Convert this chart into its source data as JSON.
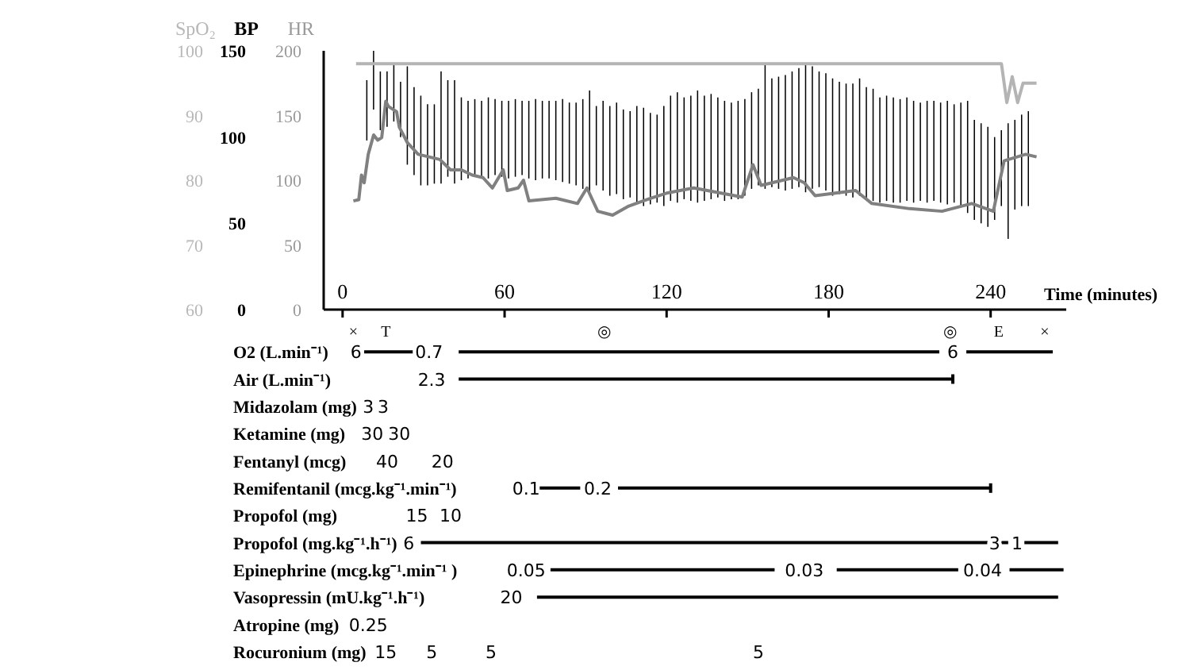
{
  "chart_data": [
    {
      "type": "bar",
      "ylabel": "BP",
      "y2label": "HR",
      "y3label": "SpO₂",
      "xlabel": "Time (minutes)",
      "xlim": [
        -7,
        268
      ],
      "xticks": [
        0,
        60,
        120,
        180,
        240
      ],
      "ylim": [
        0,
        150
      ],
      "yticks": [
        0,
        50,
        100,
        150
      ],
      "y2lim": [
        0,
        200
      ],
      "y2ticks": [
        0,
        50,
        100,
        150,
        200
      ],
      "y3lim": [
        60,
        100
      ],
      "y3ticks": [
        60,
        70,
        80,
        90,
        100
      ],
      "marker": "none",
      "series": [
        {
          "type": "bar",
          "color": "#000000",
          "x": [
            9,
            11.5,
            14,
            16.5,
            19,
            21.5,
            24,
            26.5,
            29,
            31.5,
            34,
            36.5,
            39,
            41.5,
            44,
            46.5,
            49,
            51.5,
            54,
            56.5,
            59,
            61.5,
            64,
            66.5,
            69,
            71.5,
            74,
            76.5,
            79,
            81.5,
            84,
            86.5,
            89,
            91.5,
            94,
            96.5,
            99,
            101.5,
            104,
            106.5,
            109,
            111.5,
            114,
            116.5,
            119,
            121.5,
            124,
            126.5,
            129,
            131.5,
            134,
            136.5,
            139,
            141.5,
            144,
            146.5,
            149,
            151.5,
            154,
            156.5,
            159,
            161.5,
            164,
            166.5,
            169,
            171.5,
            174,
            176.5,
            179,
            181.5,
            184,
            186.5,
            189,
            191.5,
            194,
            196.5,
            199,
            201.5,
            204,
            206.5,
            209,
            211.5,
            214,
            216.5,
            219,
            221.5,
            224,
            226.5,
            229,
            231.5,
            234,
            236.5,
            239,
            241.5,
            244,
            246.5,
            249,
            251.5,
            254
          ],
          "base": [
            98,
            116,
            104,
            106,
            109,
            100,
            84,
            78,
            72,
            72,
            73,
            73,
            77,
            73,
            75,
            76,
            78,
            77,
            76,
            78,
            77,
            76,
            77,
            78,
            76,
            75,
            76,
            76,
            75,
            74,
            73,
            72,
            70,
            68,
            72,
            69,
            66,
            67,
            64,
            65,
            62,
            60,
            61,
            62,
            60,
            63,
            62,
            64,
            63,
            62,
            63,
            64,
            65,
            63,
            64,
            64,
            66,
            70,
            72,
            70,
            71,
            70,
            69,
            70,
            71,
            68,
            70,
            71,
            69,
            66,
            67,
            66,
            65,
            66,
            64,
            63,
            62,
            63,
            62,
            62,
            63,
            62,
            63,
            62,
            63,
            62,
            61,
            62,
            60,
            56,
            52,
            50,
            48,
            52,
            60,
            41,
            58,
            60,
            60
          ],
          "values": [
            35,
            34,
            34,
            32,
            34,
            32,
            57,
            51,
            52,
            47,
            46,
            65,
            56,
            60,
            48,
            45,
            44,
            44,
            47,
            44,
            44,
            45,
            45,
            43,
            45,
            47,
            45,
            45,
            46,
            48,
            47,
            48,
            52,
            59,
            46,
            52,
            52,
            53,
            52,
            50,
            56,
            57,
            53,
            51,
            58,
            61,
            64,
            59,
            61,
            65,
            61,
            61,
            58,
            58,
            56,
            57,
            56,
            56,
            56,
            73,
            63,
            65,
            67,
            68,
            69,
            74,
            71,
            67,
            68,
            68,
            65,
            65,
            66,
            68,
            65,
            65,
            61,
            61,
            61,
            60,
            60,
            59,
            57,
            59,
            58,
            58,
            60,
            57,
            60,
            65,
            58,
            58,
            58,
            48,
            44,
            67,
            52,
            53,
            55
          ]
        },
        {
          "type": "line",
          "axis": "y2",
          "color": "#808080",
          "x": [
            4,
            6,
            7,
            8,
            9.5,
            11.5,
            13,
            14.5,
            16,
            17,
            20,
            21,
            24,
            28,
            32,
            36,
            40,
            44,
            48,
            52,
            55.5,
            59.5,
            61,
            65,
            67,
            69,
            79,
            87,
            90.5,
            94.5,
            100,
            106,
            114,
            120,
            130,
            148,
            152,
            155,
            167,
            171,
            175,
            190,
            196,
            210,
            222,
            233,
            241,
            245,
            253,
            257
          ],
          "values": [
            84,
            85,
            104,
            98,
            120,
            135,
            131,
            133,
            161,
            157,
            153,
            141,
            129,
            120,
            118,
            116,
            108,
            108,
            104,
            102,
            94,
            108,
            92,
            94,
            100,
            84,
            86,
            82,
            94,
            76,
            73,
            80,
            86,
            90,
            94,
            87,
            112,
            96,
            102,
            98,
            88,
            92,
            82,
            78,
            76,
            82,
            76,
            115,
            120,
            118
          ]
        },
        {
          "type": "line",
          "axis": "y3",
          "color": "#b4b4b4",
          "x": [
            5,
            244,
            246,
            248,
            250,
            252,
            257
          ],
          "values": [
            98,
            98,
            92,
            96,
            92,
            95,
            95
          ]
        }
      ],
      "annotations": [
        "×",
        "T",
        "◎",
        "◎",
        "E",
        "×"
      ]
    },
    {
      "type": "other",
      "categories": [
        "O2 (L.min⁻¹)",
        "Air (L.min⁻¹)",
        "Midazolam (mg)",
        "Ketamine (mg)",
        "Fentanyl (mcg)",
        "Remifentanil (mcg.kg⁻¹.min⁻¹)",
        "Propofol (mg)",
        "Propofol (mg.kg⁻¹.h⁻¹)",
        "Epinephrine (mcg.kg⁻¹.min⁻¹ )",
        "Vasopressin (mU.kg⁻¹.h⁻¹)",
        "Atropine (mg)",
        "Rocuronium (mg)"
      ],
      "annotations": [
        "6",
        "0.7",
        "6",
        "2.3",
        "3",
        "3",
        "30",
        "30",
        "40",
        "20",
        "0.1",
        "0.2",
        "15",
        "10",
        "6",
        "3",
        "1",
        "0.05",
        "0.03",
        "0.04",
        "20",
        "0.25",
        "15",
        "5",
        "5",
        "5"
      ]
    }
  ]
}
